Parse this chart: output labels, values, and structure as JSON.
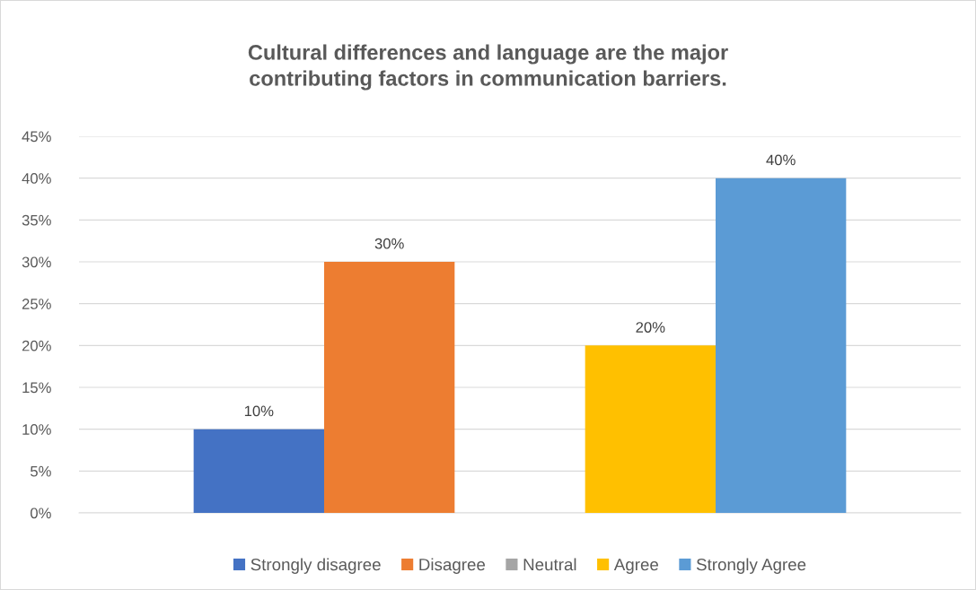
{
  "chart_data": {
    "type": "bar",
    "title": "Cultural differences and language are the major\ncontributing factors in communication barriers.",
    "categories": [
      null
    ],
    "series": [
      {
        "name": "Strongly disagree",
        "color": "#4472c4",
        "values": [
          10
        ],
        "value_labels": [
          "10%"
        ]
      },
      {
        "name": "Disagree",
        "color": "#ed7d31",
        "values": [
          30
        ],
        "value_labels": [
          "30%"
        ]
      },
      {
        "name": "Neutral",
        "color": "#a5a5a5",
        "values": [
          null
        ],
        "value_labels": [
          null
        ]
      },
      {
        "name": "Agree",
        "color": "#ffc000",
        "values": [
          20
        ],
        "value_labels": [
          "20%"
        ]
      },
      {
        "name": "Strongly Agree",
        "color": "#5b9bd5",
        "values": [
          40
        ],
        "value_labels": [
          "40%"
        ]
      }
    ],
    "ylim": [
      0,
      45
    ],
    "yticks": [
      {
        "value": 0,
        "label": "0%"
      },
      {
        "value": 5,
        "label": "5%"
      },
      {
        "value": 10,
        "label": "10%"
      },
      {
        "value": 15,
        "label": "15%"
      },
      {
        "value": 20,
        "label": "20%"
      },
      {
        "value": 25,
        "label": "25%"
      },
      {
        "value": 30,
        "label": "30%"
      },
      {
        "value": 35,
        "label": "35%"
      },
      {
        "value": 40,
        "label": "40%"
      },
      {
        "value": 45,
        "label": "45%"
      }
    ],
    "grid": "y",
    "legend": "bottom"
  }
}
